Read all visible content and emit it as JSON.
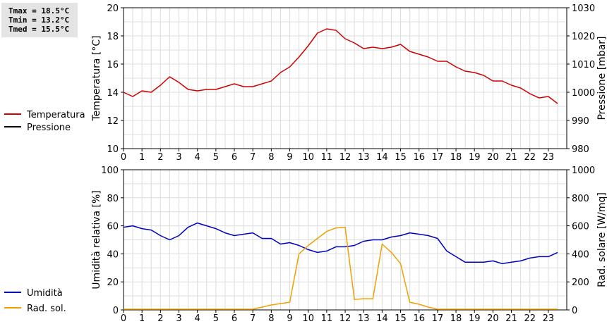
{
  "stats": {
    "tmax": "Tmax = 18.5°C",
    "tmin": "Tmin = 13.2°C",
    "tmed": "Tmed = 15.5°C"
  },
  "chart_data": [
    {
      "type": "line",
      "ylabel": "Temperatura [°C]",
      "y2label": "Pressione [mbar]",
      "x_ticks": [
        0,
        1,
        2,
        3,
        4,
        5,
        6,
        7,
        8,
        9,
        10,
        11,
        12,
        13,
        14,
        15,
        16,
        17,
        18,
        19,
        20,
        21,
        22,
        23
      ],
      "ylim": [
        10,
        20
      ],
      "yticks": [
        10,
        12,
        14,
        16,
        18,
        20
      ],
      "y2lim": [
        980,
        1030
      ],
      "y2ticks": [
        980,
        990,
        1000,
        1010,
        1020,
        1030
      ],
      "grid": true,
      "legend": "left",
      "series": [
        {
          "name": "Temperatura",
          "color": "#d00000",
          "axis": "left",
          "x": [
            0,
            0.5,
            1,
            1.5,
            2,
            2.5,
            3,
            3.5,
            4,
            4.5,
            5,
            5.5,
            6,
            6.5,
            7,
            7.5,
            8,
            8.5,
            9,
            9.5,
            10,
            10.5,
            11,
            11.5,
            12,
            12.5,
            13,
            13.5,
            14,
            14.5,
            15,
            15.5,
            16,
            16.5,
            17,
            17.5,
            18,
            18.5,
            19,
            19.5,
            20,
            20.5,
            21,
            21.5,
            22,
            22.5,
            23,
            23.5
          ],
          "y": [
            14.0,
            13.7,
            14.1,
            14.0,
            14.5,
            15.1,
            14.7,
            14.2,
            14.1,
            14.2,
            14.2,
            14.4,
            14.6,
            14.4,
            14.4,
            14.6,
            14.8,
            15.4,
            15.8,
            16.5,
            17.3,
            18.2,
            18.5,
            18.4,
            17.8,
            17.5,
            17.1,
            17.2,
            17.1,
            17.2,
            17.4,
            16.9,
            16.7,
            16.5,
            16.2,
            16.2,
            15.8,
            15.5,
            15.4,
            15.2,
            14.8,
            14.8,
            14.5,
            14.3,
            13.9,
            13.6,
            13.7,
            13.2
          ]
        },
        {
          "name": "Pressione",
          "color": "#000000",
          "axis": "right",
          "x": [],
          "y": []
        }
      ]
    },
    {
      "type": "line",
      "ylabel": "Umidità relativa [%]",
      "y2label": "Rad. solare [W/mq]",
      "x_ticks": [
        0,
        1,
        2,
        3,
        4,
        5,
        6,
        7,
        8,
        9,
        10,
        11,
        12,
        13,
        14,
        15,
        16,
        17,
        18,
        19,
        20,
        21,
        22,
        23
      ],
      "ylim": [
        0,
        100
      ],
      "yticks": [
        0,
        20,
        40,
        60,
        80,
        100
      ],
      "y2lim": [
        0,
        1000
      ],
      "y2ticks": [
        0,
        200,
        400,
        600,
        800,
        1000
      ],
      "grid": true,
      "legend": "left",
      "series": [
        {
          "name": "Umidità",
          "color": "#0000c0",
          "axis": "left",
          "x": [
            0,
            0.5,
            1,
            1.5,
            2,
            2.5,
            3,
            3.5,
            4,
            4.5,
            5,
            5.5,
            6,
            6.5,
            7,
            7.5,
            8,
            8.5,
            9,
            9.5,
            10,
            10.5,
            11,
            11.5,
            12,
            12.5,
            13,
            13.5,
            14,
            14.5,
            15,
            15.5,
            16,
            16.5,
            17,
            17.5,
            18,
            18.5,
            19,
            19.5,
            20,
            20.5,
            21,
            21.5,
            22,
            22.5,
            23,
            23.5
          ],
          "y": [
            59,
            60,
            58,
            57,
            53,
            50,
            53,
            59,
            62,
            60,
            58,
            55,
            53,
            54,
            55,
            51,
            51,
            47,
            48,
            46,
            43,
            41,
            42,
            45,
            45,
            46,
            49,
            50,
            50,
            52,
            53,
            55,
            54,
            53,
            51,
            42,
            38,
            34,
            34,
            34,
            35,
            33,
            34,
            35,
            37,
            38,
            38,
            41
          ]
        },
        {
          "name": "Rad. sol.",
          "color": "#f0a000",
          "axis": "right",
          "x": [
            0,
            0.5,
            1,
            1.5,
            2,
            2.5,
            3,
            3.5,
            4,
            4.5,
            5,
            5.5,
            6,
            6.5,
            7,
            7.5,
            8,
            8.5,
            9,
            9.5,
            10,
            10.5,
            11,
            11.5,
            12,
            12.5,
            13,
            13.5,
            14,
            14.5,
            15,
            15.5,
            16,
            16.5,
            17,
            17.5,
            18,
            18.5,
            19,
            19.5,
            20,
            20.5,
            21,
            21.5,
            22,
            22.5,
            23,
            23.5
          ],
          "y": [
            5,
            5,
            5,
            5,
            5,
            5,
            5,
            5,
            5,
            5,
            5,
            5,
            5,
            5,
            5,
            20,
            35,
            45,
            55,
            400,
            460,
            510,
            560,
            585,
            590,
            75,
            80,
            80,
            470,
            410,
            330,
            55,
            40,
            20,
            5,
            5,
            5,
            5,
            5,
            5,
            5,
            5,
            5,
            5,
            5,
            5,
            5,
            5
          ]
        }
      ]
    }
  ]
}
